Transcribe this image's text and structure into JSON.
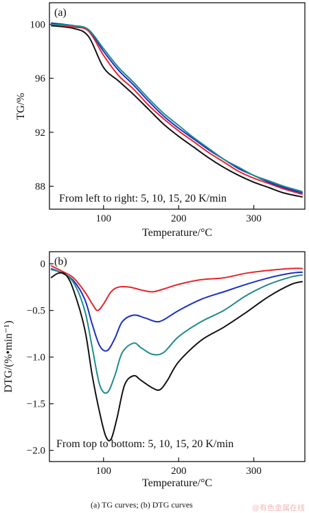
{
  "chart_data": [
    {
      "panel": "(a)",
      "type": "line",
      "ylabel": "TG/%",
      "xlabel": "Temperature/°C",
      "xlim": [
        28,
        368
      ],
      "ylim": [
        86.3,
        101.6
      ],
      "xticks": [
        100,
        200,
        300
      ],
      "yticks": [
        100,
        96,
        92,
        88
      ],
      "annotation": "From left to right: 5, 10, 15, 20 K/min",
      "grid": false,
      "series": [
        {
          "color": "#111111",
          "x": [
            30,
            60,
            80,
            100,
            120,
            140,
            160,
            180,
            200,
            220,
            240,
            260,
            280,
            300,
            320,
            340,
            365
          ],
          "y": [
            99.9,
            99.7,
            99.1,
            96.8,
            95.8,
            94.8,
            93.7,
            92.6,
            91.7,
            90.9,
            90.1,
            89.4,
            88.8,
            88.3,
            87.9,
            87.5,
            87.2
          ]
        },
        {
          "color": "#e8232a",
          "x": [
            30,
            60,
            80,
            100,
            120,
            140,
            160,
            180,
            200,
            220,
            240,
            260,
            280,
            300,
            320,
            340,
            365
          ],
          "y": [
            100.0,
            99.8,
            99.5,
            97.7,
            96.2,
            95.2,
            94.0,
            93.0,
            92.1,
            91.3,
            90.5,
            89.8,
            89.1,
            88.6,
            88.2,
            87.8,
            87.4
          ]
        },
        {
          "color": "#1a2ec8",
          "x": [
            30,
            60,
            80,
            100,
            120,
            140,
            160,
            180,
            200,
            220,
            240,
            260,
            280,
            300,
            320,
            340,
            365
          ],
          "y": [
            100.1,
            99.9,
            99.6,
            98.0,
            96.6,
            95.5,
            94.3,
            93.2,
            92.3,
            91.5,
            90.7,
            90.0,
            89.3,
            88.8,
            88.3,
            87.9,
            87.5
          ]
        },
        {
          "color": "#1f8a8a",
          "x": [
            30,
            60,
            80,
            100,
            120,
            140,
            160,
            180,
            200,
            220,
            240,
            260,
            280,
            300,
            320,
            340,
            365
          ],
          "y": [
            100.0,
            99.9,
            99.6,
            98.2,
            96.8,
            95.7,
            94.5,
            93.4,
            92.5,
            91.6,
            90.8,
            90.0,
            89.4,
            88.8,
            88.4,
            88.0,
            87.6
          ]
        }
      ]
    },
    {
      "panel": "(b)",
      "type": "line",
      "ylabel": "DTG/(%•min⁻¹)",
      "xlabel": "Temperature/°C",
      "xlim": [
        28,
        368
      ],
      "ylim": [
        -2.12,
        0.13
      ],
      "xticks": [
        100,
        200,
        300
      ],
      "yticks": [
        0,
        -0.5,
        -1.0,
        -1.5,
        -2.0
      ],
      "ytick_labels": [
        "0",
        "−0.5",
        "−1.0",
        "−1.5",
        "−2.0"
      ],
      "annotation": "From top to bottom: 5, 10, 15, 20 K/min",
      "grid": false,
      "series": [
        {
          "color": "#e8232a",
          "x": [
            30,
            45,
            60,
            75,
            85,
            92,
            100,
            110,
            120,
            135,
            150,
            165,
            180,
            200,
            230,
            260,
            290,
            320,
            350,
            365
          ],
          "y": [
            -0.02,
            -0.08,
            -0.15,
            -0.3,
            -0.43,
            -0.5,
            -0.43,
            -0.3,
            -0.25,
            -0.25,
            -0.28,
            -0.3,
            -0.27,
            -0.22,
            -0.17,
            -0.15,
            -0.1,
            -0.07,
            -0.05,
            -0.05
          ]
        },
        {
          "color": "#1a2ec8",
          "x": [
            30,
            45,
            60,
            75,
            85,
            95,
            105,
            115,
            125,
            140,
            155,
            170,
            180,
            200,
            230,
            260,
            290,
            320,
            350,
            365
          ],
          "y": [
            -0.05,
            -0.1,
            -0.18,
            -0.38,
            -0.65,
            -0.88,
            -0.93,
            -0.8,
            -0.62,
            -0.55,
            -0.58,
            -0.62,
            -0.6,
            -0.5,
            -0.38,
            -0.3,
            -0.22,
            -0.15,
            -0.1,
            -0.09
          ]
        },
        {
          "color": "#1f8a8a",
          "x": [
            30,
            45,
            60,
            75,
            85,
            95,
            105,
            115,
            125,
            140,
            150,
            165,
            180,
            200,
            230,
            260,
            290,
            320,
            350,
            365
          ],
          "y": [
            -0.06,
            -0.1,
            -0.2,
            -0.5,
            -0.9,
            -1.3,
            -1.38,
            -1.2,
            -0.95,
            -0.85,
            -0.9,
            -0.97,
            -0.95,
            -0.78,
            -0.62,
            -0.5,
            -0.34,
            -0.22,
            -0.14,
            -0.12
          ]
        },
        {
          "color": "#111111",
          "x": [
            30,
            40,
            50,
            60,
            75,
            85,
            95,
            103,
            110,
            118,
            128,
            140,
            150,
            165,
            175,
            185,
            200,
            230,
            260,
            290,
            320,
            350,
            365
          ],
          "y": [
            -0.15,
            -0.1,
            -0.12,
            -0.28,
            -0.7,
            -1.2,
            -1.6,
            -1.85,
            -1.88,
            -1.65,
            -1.3,
            -1.2,
            -1.25,
            -1.33,
            -1.35,
            -1.25,
            -1.05,
            -0.82,
            -0.68,
            -0.52,
            -0.35,
            -0.22,
            -0.19
          ]
        }
      ]
    }
  ],
  "caption": "(a) TG curves; (b) DTG curves",
  "watermark": "@有色金属在线"
}
